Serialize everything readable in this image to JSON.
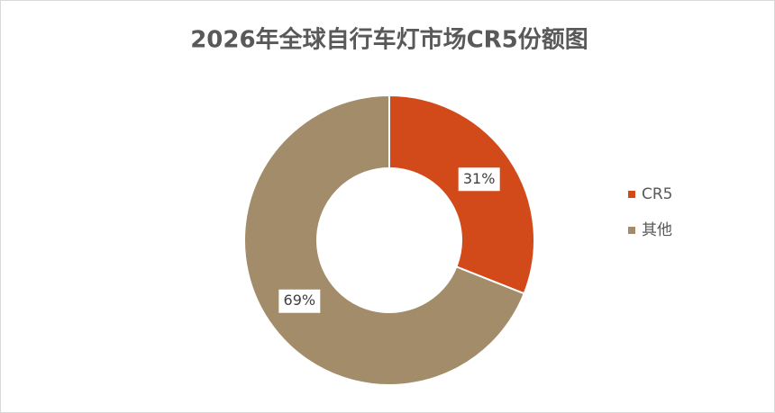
{
  "chart_data": {
    "type": "donut",
    "title": "2026年全球自行车灯市场CR5份额图",
    "categories": [
      "CR5",
      "其他"
    ],
    "values": [
      31,
      69
    ],
    "value_labels": [
      "31%",
      "69%"
    ],
    "colors": [
      "#d2491a",
      "#a28c69"
    ],
    "legend": "right"
  }
}
